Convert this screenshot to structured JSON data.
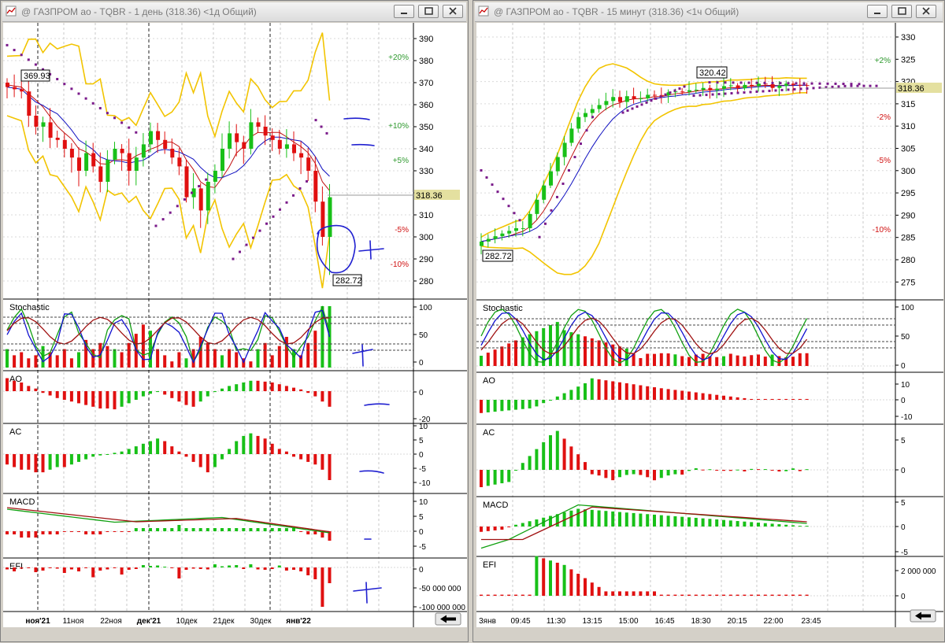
{
  "left_window": {
    "title": "@ ГАЗПРОМ ао - TQBR - 1 день (318.36) <1д Общий)",
    "price_axis": [
      "390",
      "380",
      "370",
      "360",
      "350",
      "340",
      "330",
      "320",
      "310",
      "300",
      "290",
      "280"
    ],
    "pct_labels": [
      {
        "text": "+20%",
        "color": "#2e9a2e"
      },
      {
        "text": "+10%",
        "color": "#2e9a2e"
      },
      {
        "text": "+5%",
        "color": "#2e9a2e"
      },
      {
        "text": "-5%",
        "color": "#d01010"
      },
      {
        "text": "-10%",
        "color": "#d01010"
      }
    ],
    "current_price": "318.36",
    "box_high": "369.93",
    "box_low": "282.72",
    "panels": {
      "stochastic": {
        "label": "Stochastic",
        "axis": [
          "100",
          "50",
          "0"
        ]
      },
      "ao": {
        "label": "AO",
        "axis": [
          "0",
          "-20"
        ]
      },
      "ac": {
        "label": "AC",
        "axis": [
          "10",
          "5",
          "0",
          "-5",
          "-10"
        ]
      },
      "macd": {
        "label": "MACD",
        "axis": [
          "10",
          "5",
          "0",
          "-5"
        ]
      },
      "efi": {
        "label": "EFI",
        "axis": [
          "0",
          "-50 000 000",
          "-100 000 000"
        ]
      }
    },
    "time_axis": [
      "ноя'21",
      "11ноя",
      "22ноя",
      "дек'21",
      "10дек",
      "21дек",
      "30дек",
      "янв'22"
    ]
  },
  "right_window": {
    "title": "@ ГАЗПРОМ ао - TQBR - 15 минут (318.36) <1ч Общий)",
    "price_axis": [
      "330",
      "325",
      "320",
      "315",
      "310",
      "305",
      "300",
      "295",
      "290",
      "285",
      "280",
      "275"
    ],
    "pct_labels": [
      {
        "text": "+2%",
        "color": "#2e9a2e"
      },
      {
        "text": "-2%",
        "color": "#d01010"
      },
      {
        "text": "-5%",
        "color": "#d01010"
      },
      {
        "text": "-10%",
        "color": "#d01010"
      }
    ],
    "current_price": "318.36",
    "box_high": "320.42",
    "box_low": "282.72",
    "panels": {
      "stochastic": {
        "label": "Stochastic",
        "axis": [
          "100",
          "50",
          "0"
        ]
      },
      "ao": {
        "label": "AO",
        "axis": [
          "10",
          "0",
          "-10"
        ]
      },
      "ac": {
        "label": "AC",
        "axis": [
          "5",
          "0"
        ]
      },
      "macd": {
        "label": "MACD",
        "axis": [
          "5",
          "0",
          "-5"
        ]
      },
      "efi": {
        "label": "EFI",
        "axis": [
          "2 000 000",
          "0"
        ]
      }
    },
    "time_axis": [
      "3янв",
      "09:45",
      "11:30",
      "13:15",
      "15:00",
      "16:45",
      "18:30",
      "20:15",
      "22:00",
      "23:45"
    ]
  },
  "colors": {
    "up": "#18c018",
    "down": "#e01010",
    "bollinger": "#f2c400",
    "sar": "#7a1a8a",
    "ma_red": "#c01010",
    "ma_blue": "#1010c0",
    "annotation": "#1f1fd0",
    "highlight": "#e4e0a0"
  },
  "icons": {
    "window": "chart-window-icon",
    "minimize": "minimize-icon",
    "maximize": "maximize-icon",
    "close": "close-icon",
    "scroll": "scroll-end-arrow-icon"
  }
}
